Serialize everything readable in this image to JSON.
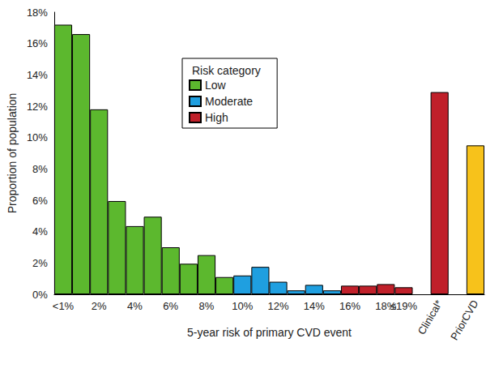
{
  "chart_data": {
    "type": "bar",
    "x_label": "5-year risk of primary CVD event",
    "y_label": "Proportion of population",
    "legend_title": "Risk category",
    "legend": "upper center",
    "categories": [
      "<1%",
      null,
      "2%",
      null,
      "4%",
      null,
      "6%",
      null,
      "8%",
      null,
      "10%",
      null,
      "12%",
      null,
      "14%",
      null,
      "16%",
      null,
      "18%",
      "≤19%",
      null,
      "Clinical*",
      null,
      "PriorCVD"
    ],
    "series": [
      {
        "name": "Low",
        "color": "#5cb82e",
        "values": [
          17.2,
          16.6,
          11.8,
          5.95,
          4.35,
          4.95,
          3.0,
          1.95,
          2.5,
          1.1,
          null,
          null,
          null,
          null,
          null,
          null,
          null,
          null,
          null,
          null,
          null,
          null,
          null,
          null
        ]
      },
      {
        "name": "Moderate",
        "color": "#1f9fe0",
        "values": [
          null,
          null,
          null,
          null,
          null,
          null,
          null,
          null,
          null,
          null,
          1.2,
          1.75,
          0.8,
          0.25,
          0.6,
          0.25,
          null,
          null,
          null,
          null,
          null,
          null,
          null,
          null
        ]
      },
      {
        "name": "High",
        "color": "#c0202a",
        "values": [
          null,
          null,
          null,
          null,
          null,
          null,
          null,
          null,
          null,
          null,
          null,
          null,
          null,
          null,
          null,
          null,
          0.55,
          0.55,
          0.65,
          0.45,
          null,
          12.9,
          null,
          null
        ]
      },
      {
        "color": "#f7c21b",
        "values": [
          null,
          null,
          null,
          null,
          null,
          null,
          null,
          null,
          null,
          null,
          null,
          null,
          null,
          null,
          null,
          null,
          null,
          null,
          null,
          null,
          null,
          null,
          null,
          9.5
        ]
      }
    ],
    "ylim": [
      0,
      18
    ],
    "yticks": [
      {
        "value": 0,
        "label": "0%"
      },
      {
        "value": 2,
        "label": "2%"
      },
      {
        "value": 4,
        "label": "4%"
      },
      {
        "value": 6,
        "label": "6%"
      },
      {
        "value": 8,
        "label": "8%"
      },
      {
        "value": 10,
        "label": "10%"
      },
      {
        "value": 12,
        "label": "12%"
      },
      {
        "value": 14,
        "label": "14%"
      },
      {
        "value": 16,
        "label": "16%"
      },
      {
        "value": 18,
        "label": "18%"
      }
    ],
    "grid": false
  }
}
